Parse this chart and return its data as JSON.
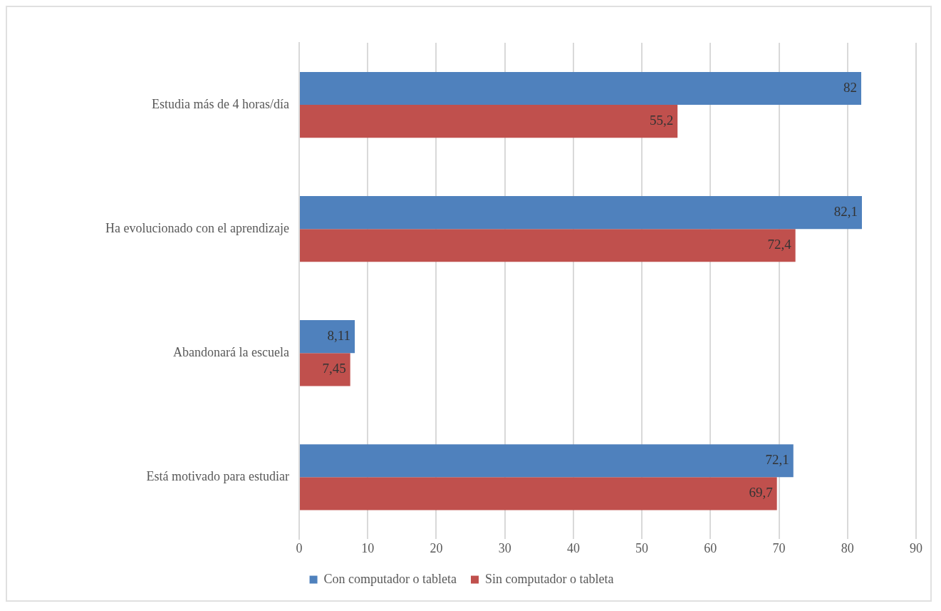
{
  "chart_data": {
    "type": "bar",
    "orientation": "horizontal",
    "categories": [
      "Estudia más de 4 horas/día",
      "Ha evolucionado con el aprendizaje",
      "Abandonará la escuela",
      "Está motivado para estudiar"
    ],
    "series": [
      {
        "name": "Con computador o tableta",
        "color": "#4f81bd",
        "values": [
          82,
          82.1,
          8.11,
          72.1
        ],
        "value_labels": [
          "82",
          "82,1",
          "8,11",
          "72,1"
        ]
      },
      {
        "name": "Sin computador o tableta",
        "color": "#c0504d",
        "values": [
          55.2,
          72.4,
          7.45,
          69.7
        ],
        "value_labels": [
          "55,2",
          "72,4",
          "7,45",
          "69,7"
        ]
      }
    ],
    "xlim": [
      0,
      90
    ],
    "xticks": [
      0,
      10,
      20,
      30,
      40,
      50,
      60,
      70,
      80,
      90
    ],
    "grid": "x",
    "legend": "bottom"
  }
}
